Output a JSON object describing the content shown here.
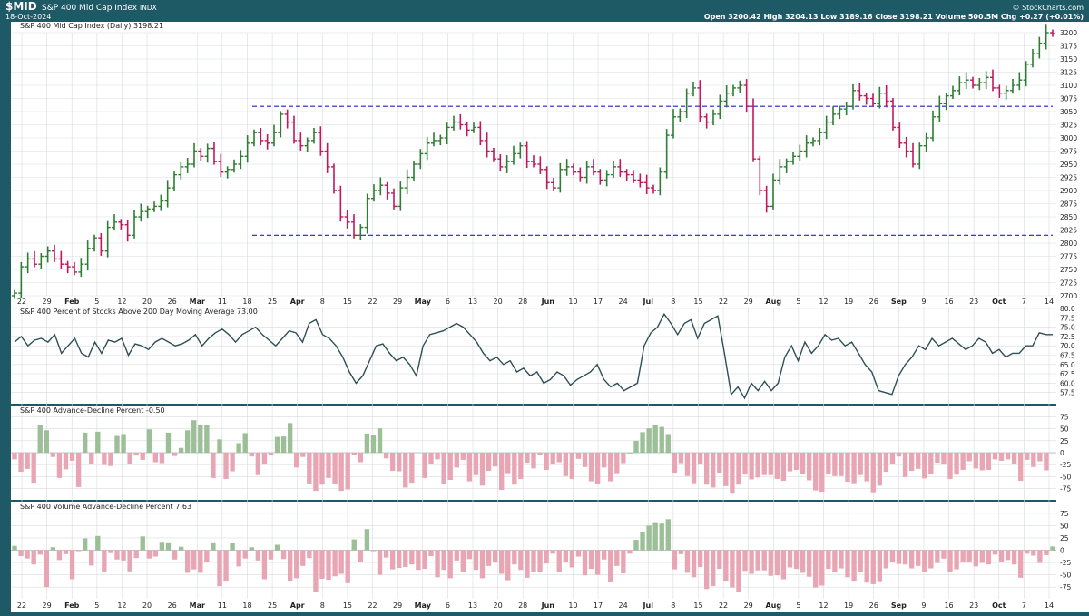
{
  "header": {
    "symbol": "$MID",
    "name": "S&P 400 Mid Cap Index",
    "exchange": "INDX",
    "date": "18-Oct-2024",
    "watermark": "© StockCharts.com",
    "ohlc": "Open 3200.42  High 3204.13  Low 3189.16  Close 3198.21  Volume 500.5M  Chg +0.27 (+0.01%)",
    "up_arrow": "▲"
  },
  "colors": {
    "frame": "#1e5a66",
    "up": "#2e7d32",
    "down": "#c2185b",
    "hline": "#2222cc",
    "osc_line": "#2f4f55",
    "bar_up": "#9dbf98",
    "bar_down": "#e8a6b4",
    "grid": "#d7dce0"
  },
  "x_axis": {
    "labels": [
      "22",
      "29",
      "Feb",
      "5",
      "12",
      "20",
      "26",
      "Mar",
      "11",
      "18",
      "25",
      "Apr",
      "8",
      "15",
      "22",
      "29",
      "May",
      "6",
      "13",
      "20",
      "28",
      "Jun",
      "10",
      "17",
      "24",
      "Jul",
      "8",
      "15",
      "22",
      "29",
      "Aug",
      "5",
      "12",
      "19",
      "26",
      "Sep",
      "9",
      "16",
      "23",
      "Oct",
      "7",
      "14"
    ],
    "bold": [
      "Feb",
      "Mar",
      "Apr",
      "May",
      "Jun",
      "Jul",
      "Aug",
      "Sep",
      "Oct"
    ]
  },
  "chart_data": [
    {
      "type": "ohlc",
      "title": "S&P 400 Mid Cap Index (Daily) 3198.21",
      "ylim": [
        2700,
        3200
      ],
      "yticks": [
        2700,
        2725,
        2750,
        2775,
        2800,
        2825,
        2850,
        2875,
        2900,
        2925,
        2950,
        2975,
        3000,
        3025,
        3050,
        3075,
        3100,
        3125,
        3150,
        3175,
        3200
      ],
      "close": [
        2705,
        2755,
        2770,
        2760,
        2775,
        2785,
        2770,
        2760,
        2755,
        2745,
        2760,
        2790,
        2810,
        2785,
        2830,
        2840,
        2835,
        2815,
        2850,
        2860,
        2865,
        2870,
        2880,
        2905,
        2930,
        2945,
        2950,
        2975,
        2965,
        2980,
        2955,
        2935,
        2940,
        2950,
        2965,
        2990,
        3010,
        2995,
        2990,
        3010,
        3045,
        3030,
        2995,
        2985,
        2995,
        3010,
        2975,
        2945,
        2900,
        2850,
        2840,
        2815,
        2830,
        2885,
        2900,
        2910,
        2895,
        2870,
        2905,
        2925,
        2950,
        2970,
        2990,
        2995,
        3000,
        3020,
        3030,
        3025,
        3015,
        3020,
        2995,
        2975,
        2960,
        2945,
        2955,
        2970,
        2985,
        2955,
        2950,
        2940,
        2915,
        2905,
        2940,
        2945,
        2935,
        2925,
        2945,
        2935,
        2920,
        2930,
        2945,
        2935,
        2930,
        2920,
        2915,
        2905,
        2900,
        2935,
        3005,
        3040,
        3050,
        3085,
        3095,
        3040,
        3030,
        3045,
        3070,
        3085,
        3095,
        3100,
        3060,
        2960,
        2900,
        2870,
        2920,
        2945,
        2955,
        2965,
        2975,
        2990,
        2995,
        3010,
        3030,
        3045,
        3055,
        3060,
        3090,
        3080,
        3075,
        3065,
        3085,
        3070,
        3020,
        2990,
        2975,
        2950,
        2985,
        3000,
        3040,
        3065,
        3080,
        3090,
        3105,
        3110,
        3100,
        3105,
        3115,
        3095,
        3085,
        3090,
        3100,
        3110,
        3140,
        3160,
        3180,
        3200,
        3198.21
      ]
    },
    {
      "type": "line",
      "title": "S&P 400 Percent of Stocks Above 200 Day Moving Average 73.00",
      "ylim": [
        55,
        80
      ],
      "yticks": [
        57.5,
        60.0,
        62.5,
        65.0,
        67.5,
        70.0,
        72.5,
        75.0,
        77.5,
        80.0
      ],
      "values": [
        71.0,
        72.5,
        70.0,
        71.5,
        72.0,
        71.0,
        73.0,
        68.0,
        70.0,
        72.0,
        68.0,
        67.0,
        71.0,
        68.0,
        71.5,
        71.0,
        72.0,
        67.5,
        70.5,
        70.0,
        69.0,
        71.0,
        72.0,
        71.0,
        70.0,
        70.5,
        71.5,
        73.0,
        70.0,
        72.0,
        73.5,
        74.5,
        73.0,
        71.0,
        73.0,
        74.0,
        75.0,
        73.0,
        71.5,
        70.0,
        72.0,
        74.0,
        73.5,
        71.0,
        76.0,
        77.0,
        73.0,
        72.0,
        70.0,
        67.0,
        63.0,
        60.0,
        62.0,
        66.0,
        70.0,
        70.5,
        68.0,
        66.0,
        67.0,
        65.0,
        62.0,
        70.0,
        73.0,
        73.5,
        74.0,
        75.0,
        76.0,
        75.0,
        73.0,
        71.0,
        68.0,
        66.0,
        67.0,
        65.0,
        66.0,
        63.0,
        64.0,
        62.0,
        63.0,
        60.0,
        61.0,
        63.0,
        62.0,
        59.5,
        61.0,
        62.0,
        63.0,
        65.0,
        61.0,
        59.0,
        60.0,
        58.0,
        59.0,
        60.0,
        70.0,
        73.5,
        75.0,
        78.5,
        76.0,
        73.0,
        76.0,
        77.0,
        72.0,
        76.0,
        77.0,
        78.0,
        68.0,
        57.0,
        59.0,
        56.0,
        60.0,
        58.0,
        60.5,
        58.0,
        60.0,
        67.0,
        70.0,
        66.0,
        71.0,
        68.0,
        70.0,
        73.0,
        71.5,
        72.0,
        70.0,
        71.0,
        68.0,
        65.0,
        63.0,
        58.0,
        57.5,
        57.0,
        62.0,
        65.0,
        67.0,
        70.0,
        69.0,
        72.0,
        70.0,
        71.0,
        72.0,
        70.5,
        69.0,
        70.0,
        72.0,
        71.0,
        68.0,
        69.0,
        67.0,
        68.0,
        68.0,
        70.0,
        70.0,
        73.5,
        73.0,
        73.0
      ]
    },
    {
      "type": "bar",
      "title": "S&P 400 Advance-Decline Percent -0.50",
      "ylim": [
        -95,
        95
      ],
      "yticks": [
        -75,
        -50,
        -25,
        0,
        25,
        50,
        75
      ],
      "values": [
        -14,
        -40,
        -34,
        -63,
        58,
        47,
        -9,
        -53,
        -35,
        -17,
        -72,
        42,
        -25,
        44,
        -26,
        -28,
        35,
        39,
        -23,
        -6,
        -15,
        49,
        -20,
        -22,
        42,
        -7,
        10,
        47,
        68,
        58,
        57,
        -53,
        28,
        -55,
        -39,
        20,
        41,
        -8,
        -47,
        -25,
        -4,
        33,
        34,
        62,
        -31,
        -9,
        -65,
        -80,
        -67,
        -53,
        -66,
        -80,
        -77,
        -5,
        -20,
        40,
        36,
        51,
        -12,
        -38,
        -39,
        -73,
        -63,
        -1,
        -53,
        -24,
        -14,
        -65,
        -57,
        -31,
        -15,
        -60,
        -47,
        -69,
        -38,
        -29,
        -78,
        -43,
        -67,
        -55,
        -21,
        -33,
        -5,
        -36,
        -25,
        -20,
        -49,
        -55,
        -13,
        -30,
        -60,
        -66,
        -31,
        -60,
        -43,
        -22,
        -2,
        25,
        43,
        51,
        57,
        54,
        39,
        -42,
        -22,
        -49,
        -64,
        -24,
        -67,
        -73,
        -42,
        -70,
        -84,
        -67,
        -46,
        -56,
        -52,
        -47,
        -47,
        -55,
        -59,
        -39,
        -36,
        -45,
        -58,
        -79,
        -82,
        -45,
        -49,
        -49,
        -61,
        -64,
        -47,
        -60,
        -83,
        -69,
        -40,
        -24,
        -8,
        -51,
        -38,
        -34,
        -54,
        -45,
        -21,
        -24,
        -55,
        -46,
        -36,
        -18,
        -33,
        -37,
        -36,
        -14,
        -17,
        -14,
        -24,
        -59,
        -15,
        -30,
        -18,
        -37,
        -1
      ]
    },
    {
      "type": "bar",
      "title": "S&P 400 Volume Advance-Decline Percent 7.63",
      "ylim": [
        -95,
        95
      ],
      "yticks": [
        -75,
        -50,
        -25,
        0,
        25,
        50,
        75
      ],
      "values": [
        9,
        -12,
        -17,
        -29,
        -9,
        -75,
        6,
        -20,
        -8,
        -59,
        -2,
        24,
        -31,
        29,
        -44,
        -6,
        -19,
        -21,
        -43,
        -16,
        28,
        -17,
        -13,
        17,
        16,
        -19,
        7,
        -46,
        -39,
        -46,
        -25,
        16,
        -73,
        -62,
        15,
        -33,
        -17,
        6,
        -21,
        -59,
        -19,
        11,
        -18,
        -62,
        -57,
        -32,
        -16,
        -84,
        -58,
        -60,
        -53,
        -48,
        -67,
        22,
        -24,
        43,
        -2,
        -50,
        -15,
        -39,
        -36,
        -34,
        -29,
        -40,
        -38,
        -12,
        -55,
        -40,
        -57,
        -21,
        -44,
        -18,
        -40,
        -57,
        -32,
        -25,
        -48,
        -61,
        -29,
        -40,
        -56,
        -45,
        -44,
        -27,
        -7,
        -45,
        -24,
        -35,
        -13,
        -51,
        -38,
        -50,
        -19,
        -64,
        -32,
        -47,
        -7,
        21,
        38,
        50,
        57,
        54,
        63,
        -39,
        -8,
        -46,
        -55,
        -34,
        -79,
        -73,
        -38,
        -62,
        -76,
        -85,
        -42,
        -48,
        -41,
        -41,
        -52,
        -51,
        -59,
        -35,
        -38,
        -46,
        -54,
        -76,
        -72,
        -38,
        -45,
        -37,
        -55,
        -62,
        -44,
        -66,
        -69,
        -63,
        -37,
        -24,
        -28,
        -29,
        -37,
        -32,
        -45,
        -37,
        -26,
        -17,
        -44,
        -39,
        -25,
        -25,
        -33,
        -26,
        -29,
        -9,
        -23,
        -20,
        -29,
        -56,
        -7,
        -11,
        -26,
        -10,
        7.63
      ]
    }
  ]
}
